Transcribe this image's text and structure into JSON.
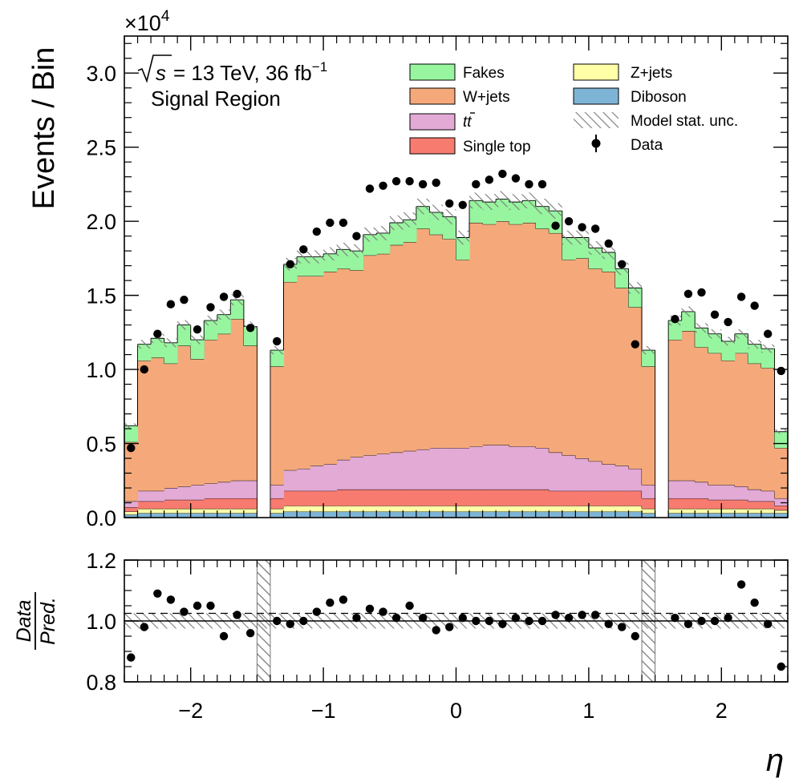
{
  "chart_data": [
    {
      "type": "stacked-histogram",
      "panel": "main",
      "ylabel": "Events / Bin",
      "y_scale_label_prefix": "×10",
      "y_scale_exponent": "4",
      "ylim": [
        0,
        3.25
      ],
      "y_ticks": [
        0.0,
        0.5,
        1.0,
        1.5,
        2.0,
        2.5,
        3.0
      ],
      "y_tick_labels": [
        "0.0",
        "0.5",
        "1.0",
        "1.5",
        "2.0",
        "2.5",
        "3.0"
      ],
      "annotation": {
        "sqrt_s_label": "s",
        "energy_text": "= 13 TeV, 36 fb",
        "lumi_exponent": "−1",
        "region": "Signal Region"
      },
      "legend": {
        "entries": [
          {
            "key": "fakes",
            "label": "Fakes",
            "kind": "box",
            "color": "#98f59f"
          },
          {
            "key": "wjets",
            "label": "W+jets",
            "kind": "box",
            "color": "#f5a97a"
          },
          {
            "key": "ttbar",
            "label": "tt",
            "kind": "box",
            "color": "#e3aad6"
          },
          {
            "key": "singletop",
            "label": "Single top",
            "kind": "box",
            "color": "#f87b70"
          },
          {
            "key": "zjets",
            "label": "Z+jets",
            "kind": "box",
            "color": "#ffffa8"
          },
          {
            "key": "diboson",
            "label": "Diboson",
            "kind": "box",
            "color": "#7eb4d6"
          },
          {
            "key": "unc",
            "label": "Model stat. unc.",
            "kind": "hatch",
            "color": "#777777"
          },
          {
            "key": "data",
            "label": "Data",
            "kind": "marker",
            "color": "#000000"
          }
        ]
      },
      "bins": {
        "edges": [
          -2.5,
          -2.4,
          -2.3,
          -2.2,
          -2.1,
          -2.0,
          -1.9,
          -1.8,
          -1.7,
          -1.6,
          -1.5,
          -1.4,
          -1.3,
          -1.2,
          -1.1,
          -1.0,
          -0.9,
          -0.8,
          -0.7,
          -0.6,
          -0.5,
          -0.4,
          -0.3,
          -0.2,
          -0.1,
          0.0,
          0.1,
          0.2,
          0.3,
          0.4,
          0.5,
          0.6,
          0.7,
          0.8,
          0.9,
          1.0,
          1.1,
          1.2,
          1.3,
          1.4,
          1.5,
          1.6,
          1.7,
          1.8,
          1.9,
          2.0,
          2.1,
          2.2,
          2.3,
          2.4,
          2.5
        ],
        "gap_bins": [
          10,
          39
        ]
      },
      "series": [
        {
          "name": "Diboson",
          "values": [
            0.02,
            0.03,
            0.03,
            0.03,
            0.03,
            0.03,
            0.03,
            0.03,
            0.03,
            0.03,
            0,
            0.03,
            0.04,
            0.04,
            0.04,
            0.04,
            0.04,
            0.04,
            0.04,
            0.04,
            0.04,
            0.04,
            0.04,
            0.04,
            0.04,
            0.04,
            0.04,
            0.04,
            0.04,
            0.04,
            0.04,
            0.04,
            0.04,
            0.04,
            0.04,
            0.04,
            0.04,
            0.04,
            0.04,
            0.03,
            0,
            0.03,
            0.03,
            0.03,
            0.03,
            0.03,
            0.03,
            0.03,
            0.03,
            0.03
          ]
        },
        {
          "name": "Z+jets",
          "values": [
            0.02,
            0.03,
            0.03,
            0.03,
            0.03,
            0.03,
            0.03,
            0.03,
            0.03,
            0.03,
            0,
            0.03,
            0.04,
            0.04,
            0.04,
            0.04,
            0.04,
            0.04,
            0.04,
            0.04,
            0.04,
            0.04,
            0.04,
            0.04,
            0.04,
            0.04,
            0.04,
            0.04,
            0.04,
            0.04,
            0.04,
            0.04,
            0.04,
            0.04,
            0.04,
            0.04,
            0.04,
            0.04,
            0.04,
            0.03,
            0,
            0.03,
            0.03,
            0.03,
            0.03,
            0.03,
            0.03,
            0.03,
            0.03,
            0.02
          ]
        },
        {
          "name": "Single top",
          "values": [
            0.03,
            0.05,
            0.05,
            0.06,
            0.06,
            0.06,
            0.07,
            0.07,
            0.07,
            0.07,
            0,
            0.07,
            0.1,
            0.1,
            0.1,
            0.1,
            0.11,
            0.11,
            0.11,
            0.11,
            0.11,
            0.11,
            0.11,
            0.11,
            0.11,
            0.11,
            0.11,
            0.11,
            0.11,
            0.11,
            0.11,
            0.11,
            0.1,
            0.1,
            0.1,
            0.1,
            0.1,
            0.1,
            0.1,
            0.07,
            0,
            0.07,
            0.07,
            0.07,
            0.06,
            0.06,
            0.06,
            0.05,
            0.05,
            0.03
          ]
        },
        {
          "name": "tt",
          "values": [
            0.04,
            0.07,
            0.07,
            0.08,
            0.09,
            0.1,
            0.1,
            0.11,
            0.12,
            0.12,
            0,
            0.09,
            0.14,
            0.15,
            0.17,
            0.18,
            0.2,
            0.22,
            0.23,
            0.24,
            0.25,
            0.26,
            0.27,
            0.28,
            0.28,
            0.28,
            0.29,
            0.3,
            0.3,
            0.29,
            0.29,
            0.28,
            0.26,
            0.24,
            0.22,
            0.2,
            0.18,
            0.17,
            0.15,
            0.09,
            0,
            0.12,
            0.12,
            0.11,
            0.1,
            0.1,
            0.09,
            0.08,
            0.07,
            0.05
          ]
        },
        {
          "name": "W+jets",
          "values": [
            0.4,
            0.88,
            0.9,
            0.84,
            0.95,
            0.85,
            0.97,
            1.0,
            1.09,
            0.91,
            0,
            0.8,
            1.27,
            1.3,
            1.28,
            1.3,
            1.29,
            1.26,
            1.35,
            1.35,
            1.4,
            1.41,
            1.49,
            1.44,
            1.41,
            1.27,
            1.51,
            1.49,
            1.51,
            1.5,
            1.51,
            1.48,
            1.48,
            1.32,
            1.35,
            1.3,
            1.3,
            1.2,
            1.09,
            0.8,
            0,
            0.95,
            1.01,
            0.91,
            0.89,
            0.84,
            0.9,
            0.85,
            0.83,
            0.34
          ]
        },
        {
          "name": "Fakes",
          "values": [
            0.11,
            0.11,
            0.13,
            0.14,
            0.14,
            0.13,
            0.13,
            0.13,
            0.13,
            0.13,
            0,
            0.11,
            0.12,
            0.13,
            0.13,
            0.12,
            0.13,
            0.13,
            0.14,
            0.14,
            0.15,
            0.15,
            0.15,
            0.15,
            0.15,
            0.15,
            0.15,
            0.15,
            0.15,
            0.15,
            0.15,
            0.15,
            0.15,
            0.15,
            0.14,
            0.14,
            0.13,
            0.13,
            0.13,
            0.11,
            0,
            0.13,
            0.13,
            0.13,
            0.13,
            0.13,
            0.13,
            0.13,
            0.13,
            0.11
          ]
        }
      ],
      "data": [
        0.47,
        1.0,
        1.24,
        1.44,
        1.47,
        1.27,
        1.42,
        1.49,
        1.51,
        1.28,
        null,
        1.19,
        1.71,
        1.81,
        1.93,
        1.99,
        1.99,
        1.9,
        2.22,
        2.24,
        2.27,
        2.27,
        2.25,
        2.26,
        2.12,
        2.11,
        2.25,
        2.28,
        2.32,
        2.29,
        2.25,
        2.25,
        1.97,
        2.0,
        1.96,
        1.95,
        1.85,
        1.71,
        1.17,
        null,
        null,
        1.34,
        1.51,
        1.52,
        1.37,
        1.32,
        1.49,
        1.43,
        1.24,
        0.99
      ]
    },
    {
      "type": "ratio-scatter",
      "panel": "ratio",
      "ylabel_numerator": "Data",
      "ylabel_denominator": "Pred.",
      "xlabel": "η",
      "xlim": [
        -2.5,
        2.5
      ],
      "ylim": [
        0.8,
        1.2
      ],
      "x_ticks": [
        -2,
        -1,
        0,
        1,
        2
      ],
      "x_tick_labels": [
        "−2",
        "−1",
        "0",
        "1",
        "2"
      ],
      "y_ticks": [
        0.8,
        1.0,
        1.2
      ],
      "y_tick_labels": [
        "0.8",
        "1.0",
        "1.2"
      ],
      "reference_line": 1.0,
      "unc_band": 0.025,
      "values": [
        0.88,
        0.98,
        1.09,
        1.07,
        1.03,
        1.05,
        1.05,
        0.95,
        1.02,
        0.96,
        null,
        1.0,
        0.99,
        1.0,
        1.03,
        1.06,
        1.07,
        1.01,
        1.04,
        1.03,
        1.01,
        1.05,
        1.01,
        0.97,
        0.98,
        1.01,
        1.0,
        1.0,
        0.99,
        1.01,
        1.0,
        1.0,
        1.02,
        1.01,
        1.02,
        1.02,
        0.99,
        0.98,
        0.95,
        null,
        null,
        1.01,
        0.99,
        1.0,
        1.0,
        1.01,
        1.12,
        1.06,
        0.99,
        0.85
      ]
    }
  ]
}
